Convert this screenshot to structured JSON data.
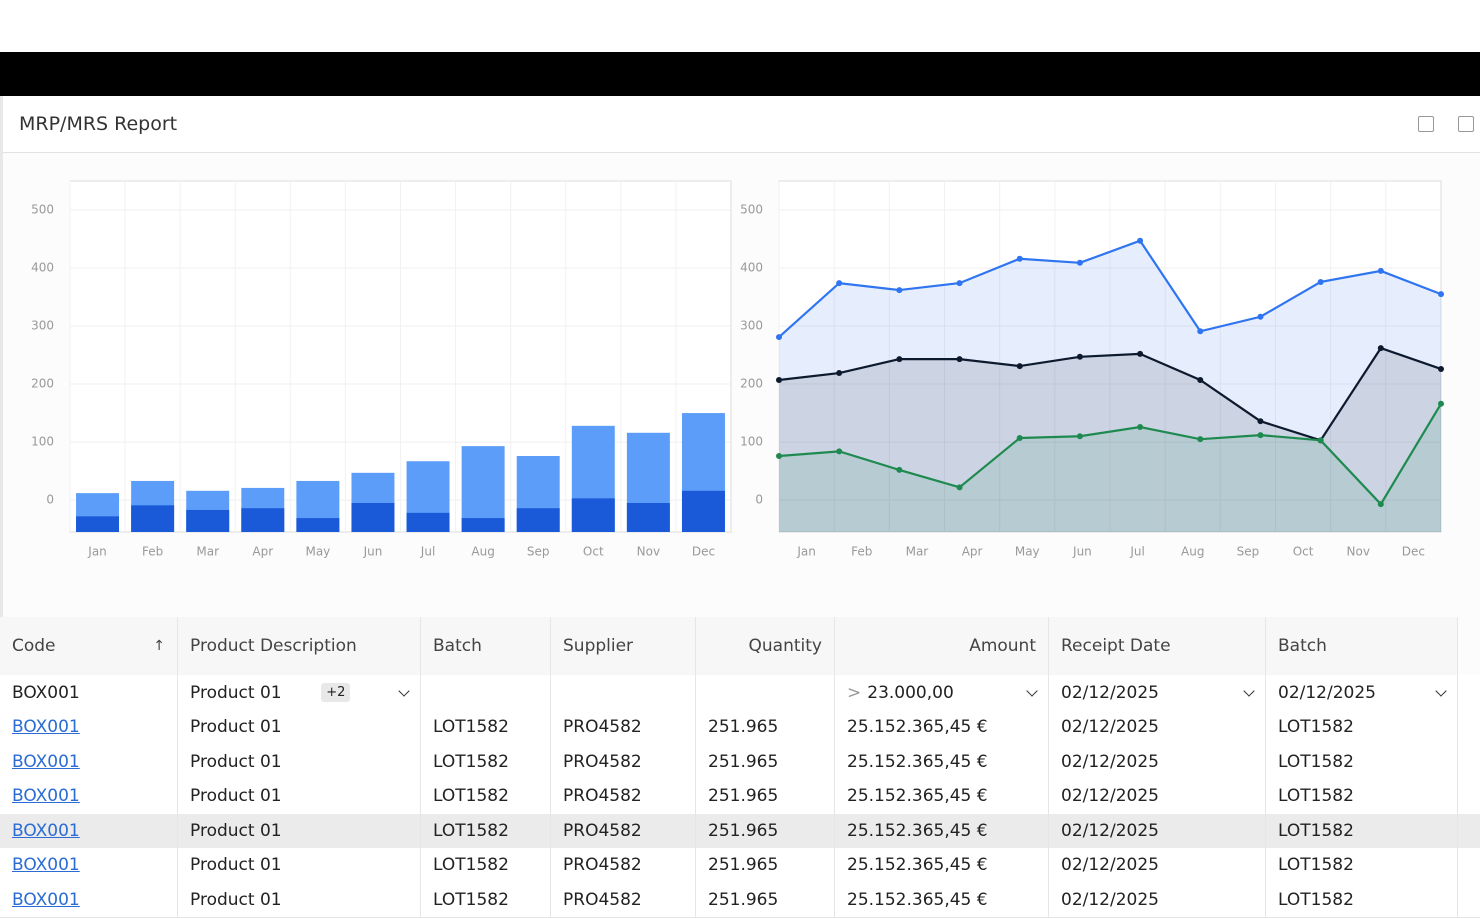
{
  "header": {
    "title": "MRP/MRS Report"
  },
  "chart_data": [
    {
      "type": "bar",
      "categories": [
        "Jan",
        "Feb",
        "Mar",
        "Apr",
        "May",
        "Jun",
        "Jul",
        "Aug",
        "Sep",
        "Oct",
        "Nov",
        "Dec"
      ],
      "ylim": [
        -55,
        550
      ],
      "yticks": [
        0,
        100,
        200,
        300,
        400,
        500
      ],
      "grid": true,
      "series": [
        {
          "color": "#5b9df9",
          "values": [
            12,
            33,
            16,
            21,
            33,
            47,
            67,
            93,
            76,
            128,
            116,
            150
          ]
        },
        {
          "color": "#1a5ad8",
          "values": [
            -28,
            -9,
            -17,
            -14,
            -31,
            -5,
            -22,
            -31,
            -14,
            3,
            -5,
            16
          ]
        }
      ]
    },
    {
      "type": "area",
      "categories": [
        "Jan",
        "Feb",
        "Mar",
        "Apr",
        "May",
        "Jun",
        "Jul",
        "Aug",
        "Sep",
        "Oct",
        "Nov",
        "Dec"
      ],
      "ylim": [
        -55,
        550
      ],
      "yticks": [
        0,
        100,
        200,
        300,
        400,
        500
      ],
      "grid": true,
      "series": [
        {
          "color": "#2f74f0",
          "values": [
            281,
            374,
            362,
            374,
            416,
            409,
            447,
            291,
            316,
            376,
            395,
            355
          ]
        },
        {
          "color": "#0d1a2e",
          "values": [
            207,
            219,
            243,
            243,
            231,
            247,
            252,
            207,
            136,
            103,
            262,
            226
          ]
        },
        {
          "color": "#1e8a4f",
          "values": [
            76,
            84,
            52,
            22,
            107,
            110,
            126,
            105,
            112,
            103,
            -7,
            166
          ]
        }
      ]
    }
  ],
  "table": {
    "columns": [
      "Code",
      "Product Description",
      "Batch",
      "Supplier",
      "Quantity",
      "Amount",
      "Receipt Date",
      "Batch"
    ],
    "filters": {
      "code": "BOX001",
      "product": "Product 01",
      "product_more": "+2",
      "amount_op": ">",
      "amount": "23.000,00",
      "receipt_date": "02/12/2025",
      "batch2": "02/12/2025"
    },
    "rows": [
      [
        "BOX001",
        "Product 01",
        "LOT1582",
        "PRO4582",
        "251.965",
        "25.152.365,45 €",
        "02/12/2025",
        "LOT1582"
      ],
      [
        "BOX001",
        "Product 01",
        "LOT1582",
        "PRO4582",
        "251.965",
        "25.152.365,45 €",
        "02/12/2025",
        "LOT1582"
      ],
      [
        "BOX001",
        "Product 01",
        "LOT1582",
        "PRO4582",
        "251.965",
        "25.152.365,45 €",
        "02/12/2025",
        "LOT1582"
      ],
      [
        "BOX001",
        "Product 01",
        "LOT1582",
        "PRO4582",
        "251.965",
        "25.152.365,45 €",
        "02/12/2025",
        "LOT1582"
      ],
      [
        "BOX001",
        "Product 01",
        "LOT1582",
        "PRO4582",
        "251.965",
        "25.152.365,45 €",
        "02/12/2025",
        "LOT1582"
      ],
      [
        "BOX001",
        "Product 01",
        "LOT1582",
        "PRO4582",
        "251.965",
        "25.152.365,45 €",
        "02/12/2025",
        "LOT1582"
      ]
    ]
  }
}
